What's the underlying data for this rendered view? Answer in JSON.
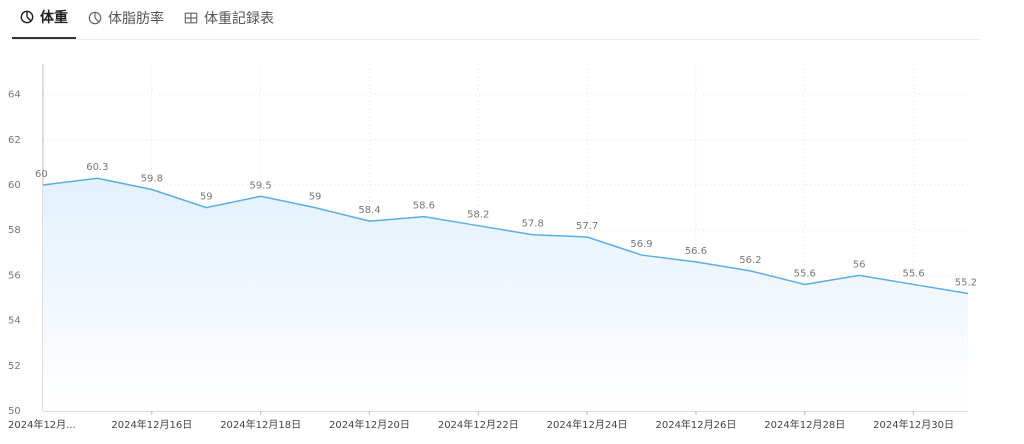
{
  "tabs": [
    {
      "label": "体重",
      "icon": "pie-chart-icon",
      "active": true
    },
    {
      "label": "体脂肪率",
      "icon": "pie-chart-icon",
      "active": false
    },
    {
      "label": "体重記録表",
      "icon": "table-icon",
      "active": false
    }
  ],
  "colors": {
    "line": "#5aaee6",
    "area_top": "#e3f1fc",
    "area_bottom": "#ffffff",
    "grid": "#e6e6e6",
    "label": "#777777",
    "axis": "#bbbbbb"
  },
  "chart_data": {
    "type": "area",
    "title": "",
    "xlabel": "",
    "ylabel": "",
    "ylim": [
      50,
      65
    ],
    "yticks": [
      50,
      52,
      54,
      56,
      58,
      60,
      62,
      64
    ],
    "grid": true,
    "x": [
      "2024-12-14",
      "2024-12-15",
      "2024-12-16",
      "2024-12-17",
      "2024-12-18",
      "2024-12-19",
      "2024-12-20",
      "2024-12-21",
      "2024-12-22",
      "2024-12-23",
      "2024-12-24",
      "2024-12-25",
      "2024-12-26",
      "2024-12-27",
      "2024-12-28",
      "2024-12-29",
      "2024-12-30",
      "2024-12-31"
    ],
    "xtick_labels": [
      {
        "x": "2024-12-14",
        "label": "2024年12月..."
      },
      {
        "x": "2024-12-16",
        "label": "2024年12月16日"
      },
      {
        "x": "2024-12-18",
        "label": "2024年12月18日"
      },
      {
        "x": "2024-12-20",
        "label": "2024年12月20日"
      },
      {
        "x": "2024-12-22",
        "label": "2024年12月22日"
      },
      {
        "x": "2024-12-24",
        "label": "2024年12月24日"
      },
      {
        "x": "2024-12-26",
        "label": "2024年12月26日"
      },
      {
        "x": "2024-12-28",
        "label": "2024年12月28日"
      },
      {
        "x": "2024-12-30",
        "label": "2024年12月30日"
      }
    ],
    "series": [
      {
        "values": [
          60,
          60.3,
          59.8,
          59,
          59.5,
          59,
          58.4,
          58.6,
          58.2,
          57.8,
          57.7,
          56.9,
          56.6,
          56.2,
          55.6,
          56,
          55.6,
          55.2
        ]
      }
    ]
  }
}
